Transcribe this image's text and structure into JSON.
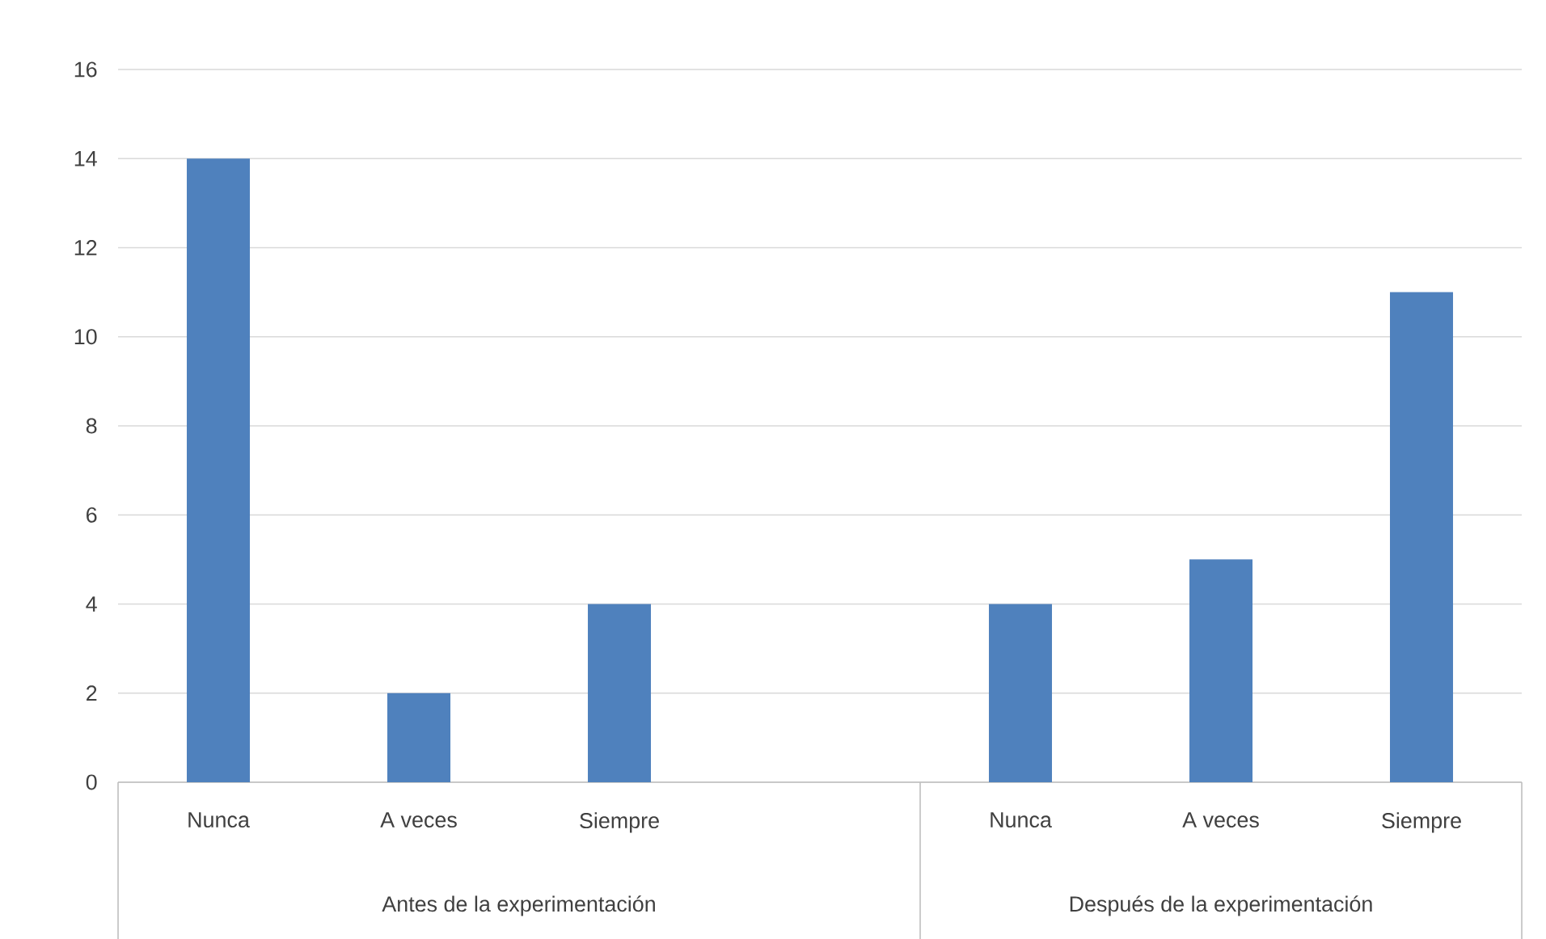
{
  "chart_data": {
    "type": "bar",
    "categories": [
      "Nunca",
      "A veces",
      "Siempre",
      null,
      "Nunca",
      "A veces",
      "Siempre"
    ],
    "values": [
      14,
      2,
      4,
      null,
      4,
      5,
      11
    ],
    "color": "#4f81bd",
    "ylim": [
      0,
      16
    ],
    "yticks": [
      0,
      2,
      4,
      6,
      8,
      10,
      12,
      14,
      16
    ],
    "grid": "y",
    "annotations": [
      "Antes de la experimentación",
      "Después de la experimentación"
    ]
  }
}
